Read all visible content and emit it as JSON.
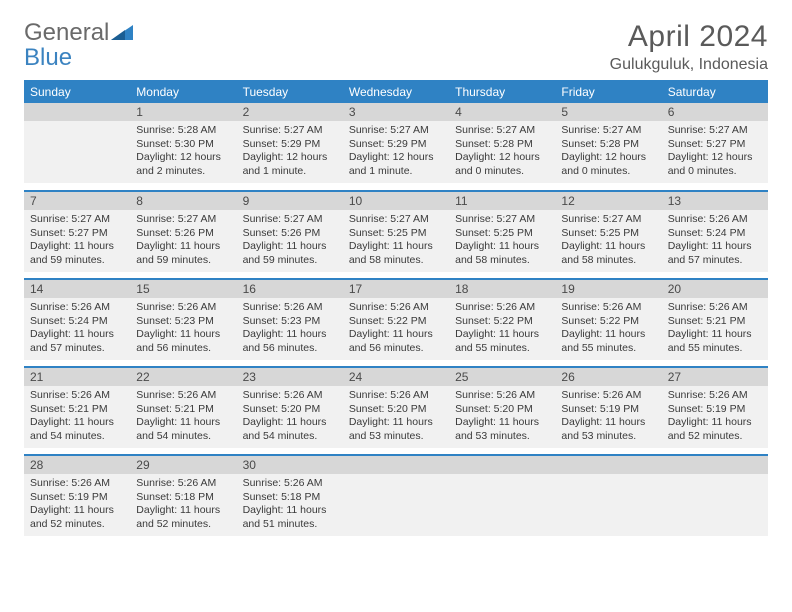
{
  "brand": {
    "part1": "General",
    "part2": "Blue"
  },
  "title": "April 2024",
  "location": "Gulukguluk, Indonesia",
  "colors": {
    "header_blue": "#2f82c4",
    "daynum_bg": "#d7d7d7",
    "body_bg": "#f1f1f1",
    "text": "#3a3a3a",
    "title_gray": "#5a5a5a"
  },
  "dayHeaders": [
    "Sunday",
    "Monday",
    "Tuesday",
    "Wednesday",
    "Thursday",
    "Friday",
    "Saturday"
  ],
  "weeks": [
    [
      {
        "n": "",
        "sr": "",
        "ss": "",
        "d1": "",
        "d2": ""
      },
      {
        "n": "1",
        "sr": "Sunrise: 5:28 AM",
        "ss": "Sunset: 5:30 PM",
        "d1": "Daylight: 12 hours",
        "d2": "and 2 minutes."
      },
      {
        "n": "2",
        "sr": "Sunrise: 5:27 AM",
        "ss": "Sunset: 5:29 PM",
        "d1": "Daylight: 12 hours",
        "d2": "and 1 minute."
      },
      {
        "n": "3",
        "sr": "Sunrise: 5:27 AM",
        "ss": "Sunset: 5:29 PM",
        "d1": "Daylight: 12 hours",
        "d2": "and 1 minute."
      },
      {
        "n": "4",
        "sr": "Sunrise: 5:27 AM",
        "ss": "Sunset: 5:28 PM",
        "d1": "Daylight: 12 hours",
        "d2": "and 0 minutes."
      },
      {
        "n": "5",
        "sr": "Sunrise: 5:27 AM",
        "ss": "Sunset: 5:28 PM",
        "d1": "Daylight: 12 hours",
        "d2": "and 0 minutes."
      },
      {
        "n": "6",
        "sr": "Sunrise: 5:27 AM",
        "ss": "Sunset: 5:27 PM",
        "d1": "Daylight: 12 hours",
        "d2": "and 0 minutes."
      }
    ],
    [
      {
        "n": "7",
        "sr": "Sunrise: 5:27 AM",
        "ss": "Sunset: 5:27 PM",
        "d1": "Daylight: 11 hours",
        "d2": "and 59 minutes."
      },
      {
        "n": "8",
        "sr": "Sunrise: 5:27 AM",
        "ss": "Sunset: 5:26 PM",
        "d1": "Daylight: 11 hours",
        "d2": "and 59 minutes."
      },
      {
        "n": "9",
        "sr": "Sunrise: 5:27 AM",
        "ss": "Sunset: 5:26 PM",
        "d1": "Daylight: 11 hours",
        "d2": "and 59 minutes."
      },
      {
        "n": "10",
        "sr": "Sunrise: 5:27 AM",
        "ss": "Sunset: 5:25 PM",
        "d1": "Daylight: 11 hours",
        "d2": "and 58 minutes."
      },
      {
        "n": "11",
        "sr": "Sunrise: 5:27 AM",
        "ss": "Sunset: 5:25 PM",
        "d1": "Daylight: 11 hours",
        "d2": "and 58 minutes."
      },
      {
        "n": "12",
        "sr": "Sunrise: 5:27 AM",
        "ss": "Sunset: 5:25 PM",
        "d1": "Daylight: 11 hours",
        "d2": "and 58 minutes."
      },
      {
        "n": "13",
        "sr": "Sunrise: 5:26 AM",
        "ss": "Sunset: 5:24 PM",
        "d1": "Daylight: 11 hours",
        "d2": "and 57 minutes."
      }
    ],
    [
      {
        "n": "14",
        "sr": "Sunrise: 5:26 AM",
        "ss": "Sunset: 5:24 PM",
        "d1": "Daylight: 11 hours",
        "d2": "and 57 minutes."
      },
      {
        "n": "15",
        "sr": "Sunrise: 5:26 AM",
        "ss": "Sunset: 5:23 PM",
        "d1": "Daylight: 11 hours",
        "d2": "and 56 minutes."
      },
      {
        "n": "16",
        "sr": "Sunrise: 5:26 AM",
        "ss": "Sunset: 5:23 PM",
        "d1": "Daylight: 11 hours",
        "d2": "and 56 minutes."
      },
      {
        "n": "17",
        "sr": "Sunrise: 5:26 AM",
        "ss": "Sunset: 5:22 PM",
        "d1": "Daylight: 11 hours",
        "d2": "and 56 minutes."
      },
      {
        "n": "18",
        "sr": "Sunrise: 5:26 AM",
        "ss": "Sunset: 5:22 PM",
        "d1": "Daylight: 11 hours",
        "d2": "and 55 minutes."
      },
      {
        "n": "19",
        "sr": "Sunrise: 5:26 AM",
        "ss": "Sunset: 5:22 PM",
        "d1": "Daylight: 11 hours",
        "d2": "and 55 minutes."
      },
      {
        "n": "20",
        "sr": "Sunrise: 5:26 AM",
        "ss": "Sunset: 5:21 PM",
        "d1": "Daylight: 11 hours",
        "d2": "and 55 minutes."
      }
    ],
    [
      {
        "n": "21",
        "sr": "Sunrise: 5:26 AM",
        "ss": "Sunset: 5:21 PM",
        "d1": "Daylight: 11 hours",
        "d2": "and 54 minutes."
      },
      {
        "n": "22",
        "sr": "Sunrise: 5:26 AM",
        "ss": "Sunset: 5:21 PM",
        "d1": "Daylight: 11 hours",
        "d2": "and 54 minutes."
      },
      {
        "n": "23",
        "sr": "Sunrise: 5:26 AM",
        "ss": "Sunset: 5:20 PM",
        "d1": "Daylight: 11 hours",
        "d2": "and 54 minutes."
      },
      {
        "n": "24",
        "sr": "Sunrise: 5:26 AM",
        "ss": "Sunset: 5:20 PM",
        "d1": "Daylight: 11 hours",
        "d2": "and 53 minutes."
      },
      {
        "n": "25",
        "sr": "Sunrise: 5:26 AM",
        "ss": "Sunset: 5:20 PM",
        "d1": "Daylight: 11 hours",
        "d2": "and 53 minutes."
      },
      {
        "n": "26",
        "sr": "Sunrise: 5:26 AM",
        "ss": "Sunset: 5:19 PM",
        "d1": "Daylight: 11 hours",
        "d2": "and 53 minutes."
      },
      {
        "n": "27",
        "sr": "Sunrise: 5:26 AM",
        "ss": "Sunset: 5:19 PM",
        "d1": "Daylight: 11 hours",
        "d2": "and 52 minutes."
      }
    ],
    [
      {
        "n": "28",
        "sr": "Sunrise: 5:26 AM",
        "ss": "Sunset: 5:19 PM",
        "d1": "Daylight: 11 hours",
        "d2": "and 52 minutes."
      },
      {
        "n": "29",
        "sr": "Sunrise: 5:26 AM",
        "ss": "Sunset: 5:18 PM",
        "d1": "Daylight: 11 hours",
        "d2": "and 52 minutes."
      },
      {
        "n": "30",
        "sr": "Sunrise: 5:26 AM",
        "ss": "Sunset: 5:18 PM",
        "d1": "Daylight: 11 hours",
        "d2": "and 51 minutes."
      },
      {
        "n": "",
        "sr": "",
        "ss": "",
        "d1": "",
        "d2": ""
      },
      {
        "n": "",
        "sr": "",
        "ss": "",
        "d1": "",
        "d2": ""
      },
      {
        "n": "",
        "sr": "",
        "ss": "",
        "d1": "",
        "d2": ""
      },
      {
        "n": "",
        "sr": "",
        "ss": "",
        "d1": "",
        "d2": ""
      }
    ]
  ]
}
